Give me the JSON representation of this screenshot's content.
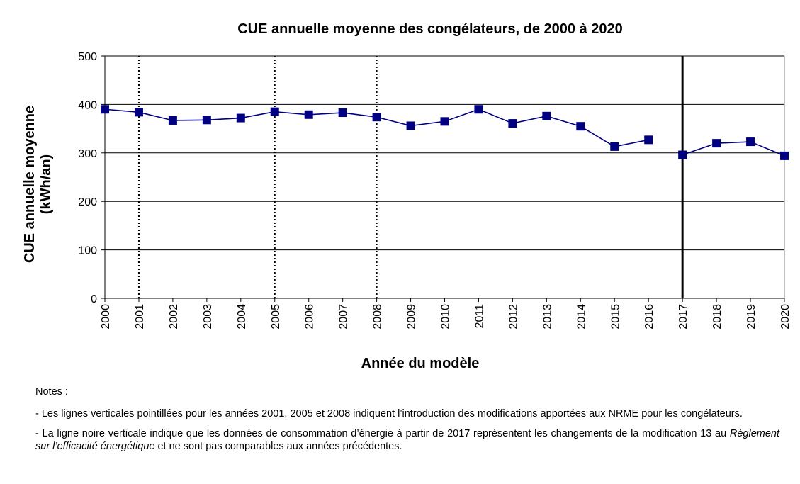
{
  "chart_data": {
    "type": "line",
    "title": "CUE annuelle moyenne des congélateurs, de 2000 à 2020",
    "xlabel": "Année du modèle",
    "ylabel_line1": "CUE annuelle moyenne",
    "ylabel_line2": "(kWh/an)",
    "categories": [
      "2000",
      "2001",
      "2002",
      "2003",
      "2004",
      "2005",
      "2006",
      "2007",
      "2008",
      "2009",
      "2010",
      "2011",
      "2012",
      "2013",
      "2014",
      "2015",
      "2016",
      "2017",
      "2018",
      "2019",
      "2020"
    ],
    "ylim": [
      0,
      500
    ],
    "yticks": [
      0,
      100,
      200,
      300,
      400,
      500
    ],
    "grid": true,
    "series": [
      {
        "color": "#000080",
        "segments": [
          {
            "start_index": 0,
            "values": [
              390,
              384,
              367,
              368,
              372,
              385,
              379,
              383,
              374,
              356,
              365,
              390,
              361,
              376,
              355,
              313,
              327
            ]
          },
          {
            "start_index": 17,
            "values": [
              296,
              320,
              323,
              294
            ]
          }
        ]
      }
    ],
    "dotted_vertical_lines": [
      "2001",
      "2005",
      "2008"
    ],
    "solid_vertical_lines": [
      "2017"
    ]
  },
  "notes": {
    "title": "Notes :",
    "note1": "- Les lignes verticales pointillées pour les années 2001, 2005 et 2008 indiquent l’introduction des modifications apportées aux NRME pour les congélateurs.",
    "note2_part1": "- La ligne noire verticale indique que les données de consommation d’énergie à partir de 2017 représentent les changements de la modification 13 au ",
    "note2_italic": "Règlement sur l’efficacité énergétique",
    "note2_part2": " et ne sont pas comparables aux années précédentes."
  }
}
